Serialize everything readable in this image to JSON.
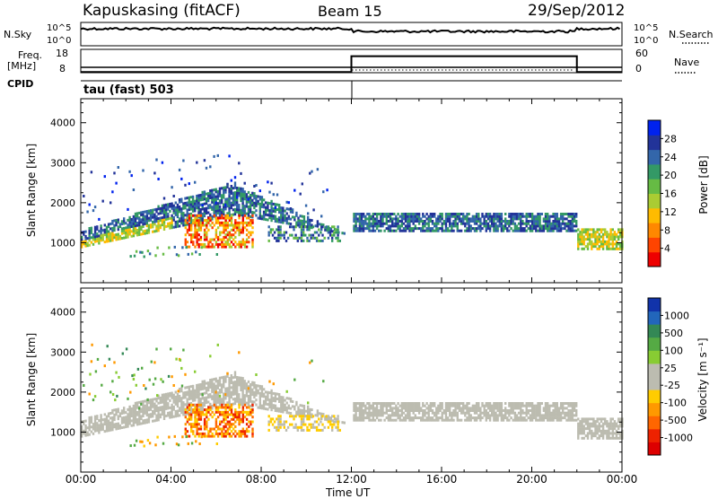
{
  "header": {
    "station": "Kapuskasing (fitACF)",
    "beam": "Beam 15",
    "date": "29/Sep/2012"
  },
  "noise_panel": {
    "left_label": "N.Sky",
    "right_label": "N.Search",
    "left_ticks": [
      "10^5",
      "10^0"
    ],
    "right_ticks": [
      "10^5",
      "10^0"
    ]
  },
  "freq_panel": {
    "left_label_1": "Freq.",
    "left_label_2": "[MHz]",
    "right_label": "Nave",
    "left_ticks": [
      "18",
      "8"
    ],
    "right_ticks": [
      "60",
      "0"
    ],
    "nave_steps": [
      {
        "from_hour": 0,
        "to_hour": 12,
        "value": 2
      },
      {
        "from_hour": 12,
        "to_hour": 22,
        "value": 48
      },
      {
        "from_hour": 22,
        "to_hour": 24,
        "value": 2
      }
    ]
  },
  "cpid": {
    "label": "CPID",
    "value": "tau (fast) 503"
  },
  "chart_data": [
    {
      "type": "heatmap",
      "name": "power",
      "ylabel": "Slant Range [km]",
      "ylim": [
        0,
        4600
      ],
      "y_ticks": [
        "1000",
        "2000",
        "3000",
        "4000"
      ],
      "colorbar": {
        "label": "Power [dB]",
        "ticks": [
          "28",
          "24",
          "20",
          "16",
          "12",
          "8",
          "4"
        ],
        "colors": [
          "#0022ee",
          "#223399",
          "#3366aa",
          "#339966",
          "#66bb44",
          "#aacc33",
          "#ffbb00",
          "#ff8800",
          "#ff4400",
          "#ee0000"
        ]
      }
    },
    {
      "type": "heatmap",
      "name": "velocity",
      "ylabel": "Slant Range [km]",
      "ylim": [
        0,
        4600
      ],
      "y_ticks": [
        "1000",
        "2000",
        "3000",
        "4000"
      ],
      "colorbar": {
        "label": "Velocity [m s⁻¹]",
        "ticks": [
          "1000",
          "500",
          "100",
          "25",
          "-25",
          "-100",
          "-500",
          "-1000"
        ],
        "colors": [
          "#1133aa",
          "#2266bb",
          "#338855",
          "#55aa44",
          "#88cc33",
          "#bcbcb0",
          "#bcbcb0",
          "#ffcc00",
          "#ff9900",
          "#ff6600",
          "#ee2200",
          "#dd0000"
        ]
      }
    }
  ],
  "time_axis": {
    "xlabel": "Time UT",
    "ticks": [
      "00:00",
      "04:00",
      "08:00",
      "12:00",
      "16:00",
      "20:00",
      "00:00"
    ],
    "xlim_hours": [
      0,
      24
    ]
  },
  "colors": {
    "ground_scatter": "#bcbcb0"
  }
}
